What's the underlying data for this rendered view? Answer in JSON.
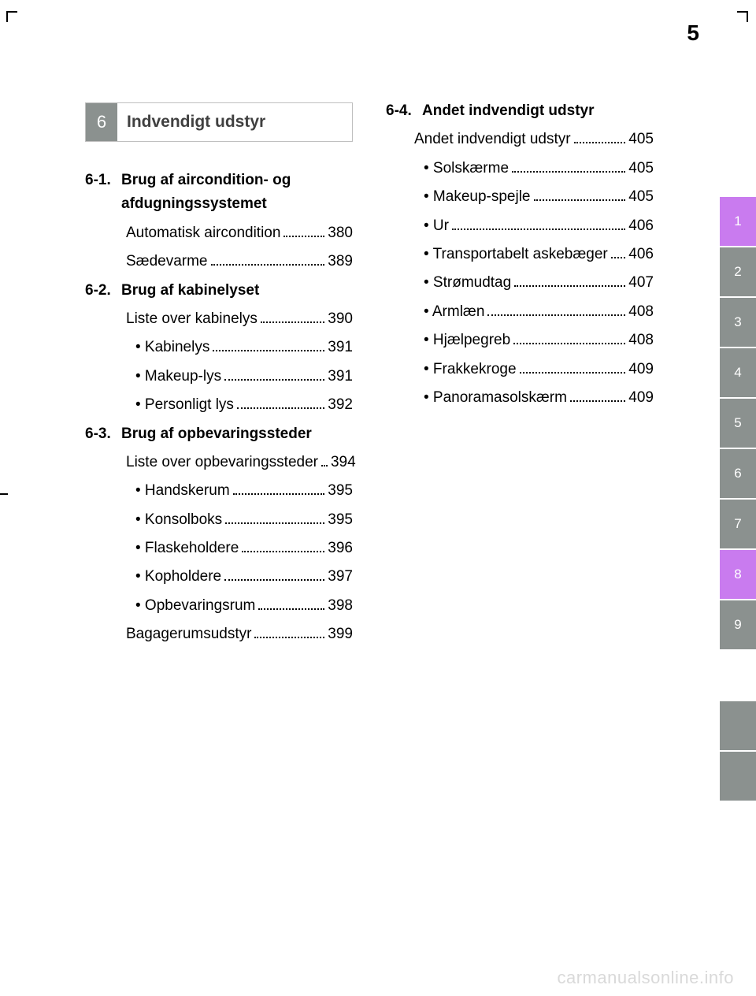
{
  "page_number": "5",
  "watermark": "carmanualsonline.info",
  "section": {
    "number": "6",
    "title": "Indvendigt udstyr"
  },
  "colors": {
    "tab_grey": "#8b918f",
    "tab_purple": "#c97bef",
    "header_text": "#404040",
    "watermark": "#d9d9d9",
    "background": "#ffffff",
    "text": "#000000"
  },
  "typography": {
    "body_fontsize": 19,
    "page_number_fontsize": 28,
    "section_title_fontsize": 21,
    "tab_fontsize": 17,
    "watermark_fontsize": 22
  },
  "tabs": [
    {
      "label": "1",
      "style": "purple"
    },
    {
      "label": "2",
      "style": "grey"
    },
    {
      "label": "3",
      "style": "grey"
    },
    {
      "label": "4",
      "style": "grey"
    },
    {
      "label": "5",
      "style": "grey"
    },
    {
      "label": "6",
      "style": "grey"
    },
    {
      "label": "7",
      "style": "grey"
    },
    {
      "label": "8",
      "style": "purple"
    },
    {
      "label": "9",
      "style": "grey"
    },
    {
      "label": "",
      "style": "spacer"
    },
    {
      "label": "",
      "style": "blank"
    },
    {
      "label": "",
      "style": "blank"
    }
  ],
  "left_column": [
    {
      "type": "head",
      "num": "6-1.",
      "text": "Brug af aircondition- og afdugningssystemet"
    },
    {
      "type": "entry",
      "label": "Automatisk aircondition",
      "page": "380"
    },
    {
      "type": "entry",
      "label": "Sædevarme",
      "page": "389"
    },
    {
      "type": "head",
      "num": "6-2.",
      "text": "Brug af kabinelyset"
    },
    {
      "type": "entry",
      "label": "Liste over kabinelys",
      "page": "390"
    },
    {
      "type": "bullet",
      "label": "• Kabinelys",
      "page": "391"
    },
    {
      "type": "bullet",
      "label": "• Makeup-lys",
      "page": "391"
    },
    {
      "type": "bullet",
      "label": "• Personligt lys",
      "page": "392"
    },
    {
      "type": "head",
      "num": "6-3.",
      "text": "Brug af opbevaringssteder"
    },
    {
      "type": "entry",
      "label": "Liste over opbevaringssteder",
      "page": "394"
    },
    {
      "type": "bullet",
      "label": "• Handskerum",
      "page": "395"
    },
    {
      "type": "bullet",
      "label": "• Konsolboks",
      "page": "395"
    },
    {
      "type": "bullet",
      "label": "• Flaskeholdere",
      "page": "396"
    },
    {
      "type": "bullet",
      "label": "• Kopholdere",
      "page": "397"
    },
    {
      "type": "bullet",
      "label": "• Opbevaringsrum",
      "page": "398"
    },
    {
      "type": "entry",
      "label": "Bagagerumsudstyr",
      "page": "399"
    }
  ],
  "right_column": [
    {
      "type": "head",
      "num": "6-4.",
      "text": "Andet indvendigt udstyr"
    },
    {
      "type": "entry",
      "label": "Andet indvendigt udstyr",
      "page": "405"
    },
    {
      "type": "bullet",
      "label": "• Solskærme",
      "page": "405"
    },
    {
      "type": "bullet",
      "label": "• Makeup-spejle",
      "page": "405"
    },
    {
      "type": "bullet",
      "label": "• Ur",
      "page": "406"
    },
    {
      "type": "bullet",
      "label": "• Transportabelt askebæger",
      "page": "406"
    },
    {
      "type": "bullet",
      "label": "• Strømudtag",
      "page": "407"
    },
    {
      "type": "bullet",
      "label": "• Armlæn",
      "page": "408"
    },
    {
      "type": "bullet",
      "label": "• Hjælpegreb",
      "page": "408"
    },
    {
      "type": "bullet",
      "label": "• Frakkekroge",
      "page": "409"
    },
    {
      "type": "bullet",
      "label": "• Panoramasolskærm",
      "page": "409"
    }
  ]
}
